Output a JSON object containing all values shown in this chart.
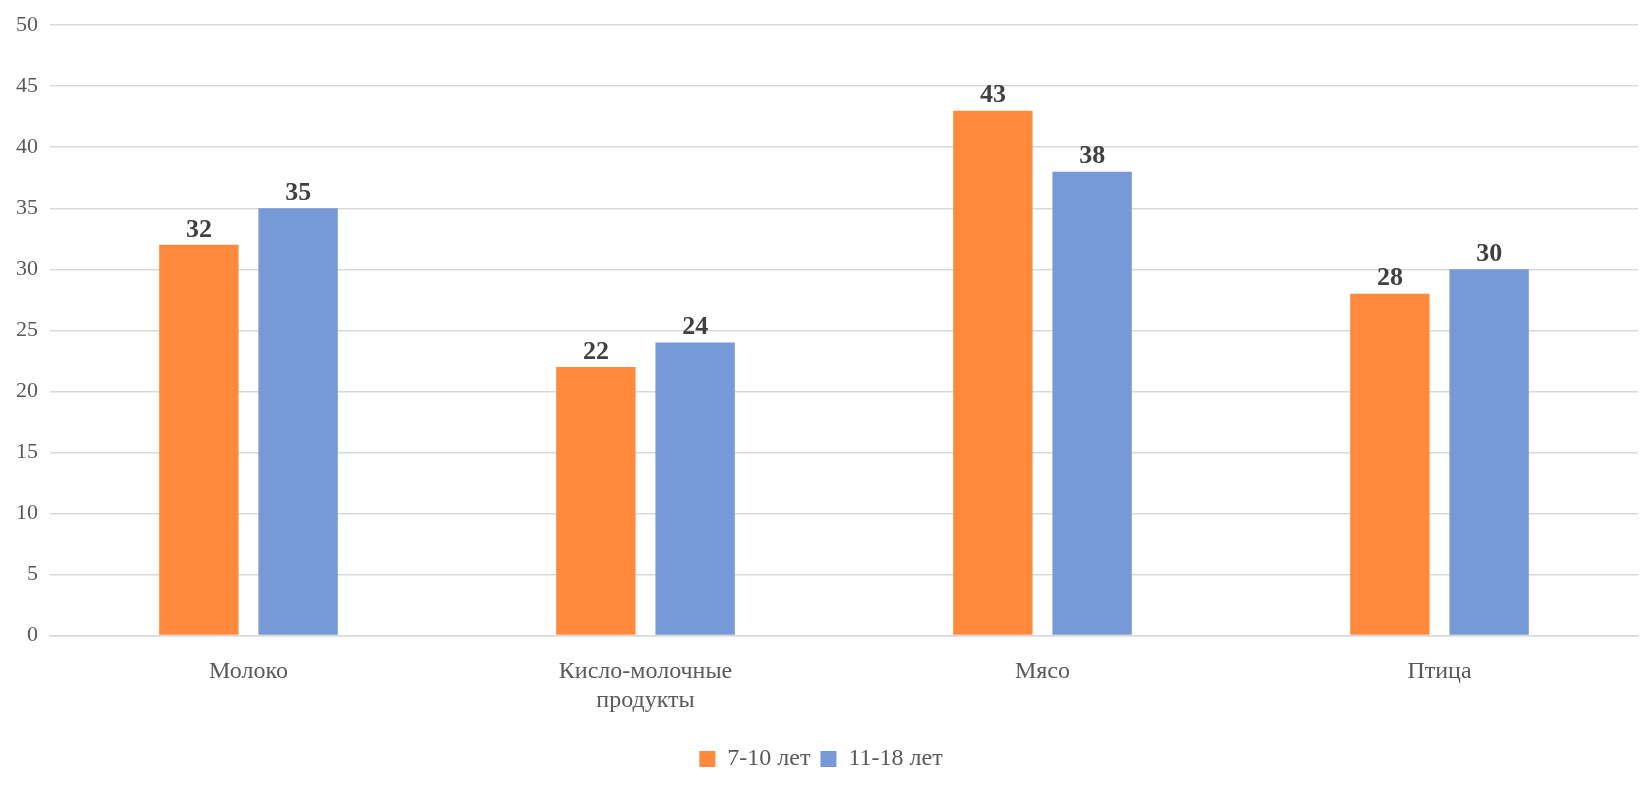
{
  "chart_data": {
    "type": "bar",
    "categories": [
      "Молоко",
      "Кисло-молочные продукты",
      "Мясо",
      "Птица"
    ],
    "series": [
      {
        "name": "7-10 лет",
        "color": "#ff8a3b",
        "values": [
          32,
          22,
          43,
          28
        ]
      },
      {
        "name": "11-18 лет",
        "color": "#7799d8",
        "values": [
          35,
          24,
          38,
          30
        ]
      }
    ],
    "ylim": [
      0,
      50
    ],
    "yticks": [
      0,
      5,
      10,
      15,
      20,
      25,
      30,
      35,
      40,
      45,
      50
    ],
    "grid": "y",
    "legend": "bottom",
    "data_labels": true
  }
}
